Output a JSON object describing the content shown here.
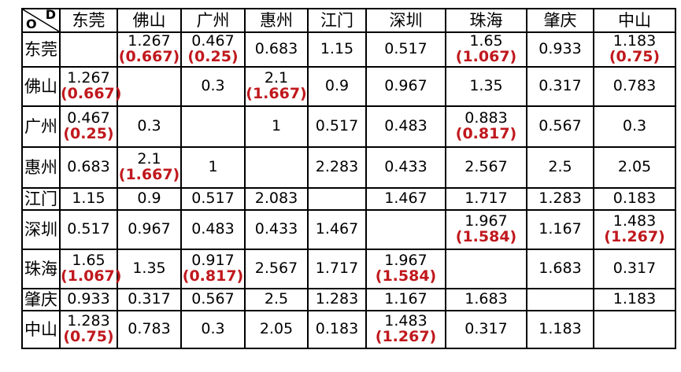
{
  "corner": {
    "origin_label": "O",
    "destination_label": "D"
  },
  "cities": [
    "东莞",
    "佛山",
    "广州",
    "惠州",
    "江门",
    "深圳",
    "珠海",
    "肇庆",
    "中山"
  ],
  "matrix": [
    [
      {
        "v": "",
        "alt": ""
      },
      {
        "v": "1.267",
        "alt": "(0.667)"
      },
      {
        "v": "0.467",
        "alt": "(0.25)"
      },
      {
        "v": "0.683",
        "alt": ""
      },
      {
        "v": "1.15",
        "alt": ""
      },
      {
        "v": "0.517",
        "alt": ""
      },
      {
        "v": "1.65",
        "alt": "(1.067)"
      },
      {
        "v": "0.933",
        "alt": ""
      },
      {
        "v": "1.183",
        "alt": "(0.75)"
      }
    ],
    [
      {
        "v": "1.267",
        "alt": "(0.667)"
      },
      {
        "v": "",
        "alt": ""
      },
      {
        "v": "0.3",
        "alt": ""
      },
      {
        "v": "2.1",
        "alt": "(1.667)"
      },
      {
        "v": "0.9",
        "alt": ""
      },
      {
        "v": "0.967",
        "alt": ""
      },
      {
        "v": "1.35",
        "alt": ""
      },
      {
        "v": "0.317",
        "alt": ""
      },
      {
        "v": "0.783",
        "alt": ""
      }
    ],
    [
      {
        "v": "0.467",
        "alt": "(0.25)"
      },
      {
        "v": "0.3",
        "alt": ""
      },
      {
        "v": "",
        "alt": ""
      },
      {
        "v": "1",
        "alt": ""
      },
      {
        "v": "0.517",
        "alt": ""
      },
      {
        "v": "0.483",
        "alt": ""
      },
      {
        "v": "0.883",
        "alt": "(0.817)"
      },
      {
        "v": "0.567",
        "alt": ""
      },
      {
        "v": "0.3",
        "alt": ""
      }
    ],
    [
      {
        "v": "0.683",
        "alt": ""
      },
      {
        "v": "2.1",
        "alt": "(1.667)"
      },
      {
        "v": "1",
        "alt": ""
      },
      {
        "v": "",
        "alt": ""
      },
      {
        "v": "2.283",
        "alt": ""
      },
      {
        "v": "0.433",
        "alt": ""
      },
      {
        "v": "2.567",
        "alt": ""
      },
      {
        "v": "2.5",
        "alt": ""
      },
      {
        "v": "2.05",
        "alt": ""
      }
    ],
    [
      {
        "v": "1.15",
        "alt": ""
      },
      {
        "v": "0.9",
        "alt": ""
      },
      {
        "v": "0.517",
        "alt": ""
      },
      {
        "v": "2.083",
        "alt": ""
      },
      {
        "v": "",
        "alt": ""
      },
      {
        "v": "1.467",
        "alt": ""
      },
      {
        "v": "1.717",
        "alt": ""
      },
      {
        "v": "1.283",
        "alt": ""
      },
      {
        "v": "0.183",
        "alt": ""
      }
    ],
    [
      {
        "v": "0.517",
        "alt": ""
      },
      {
        "v": "0.967",
        "alt": ""
      },
      {
        "v": "0.483",
        "alt": ""
      },
      {
        "v": "0.433",
        "alt": ""
      },
      {
        "v": "1.467",
        "alt": ""
      },
      {
        "v": "",
        "alt": ""
      },
      {
        "v": "1.967",
        "alt": "(1.584)"
      },
      {
        "v": "1.167",
        "alt": ""
      },
      {
        "v": "1.483",
        "alt": "(1.267)"
      }
    ],
    [
      {
        "v": "1.65",
        "alt": "(1.067)"
      },
      {
        "v": "1.35",
        "alt": ""
      },
      {
        "v": "0.917",
        "alt": "(0.817)"
      },
      {
        "v": "2.567",
        "alt": ""
      },
      {
        "v": "1.717",
        "alt": ""
      },
      {
        "v": "1.967",
        "alt": "(1.584)"
      },
      {
        "v": "",
        "alt": ""
      },
      {
        "v": "1.683",
        "alt": ""
      },
      {
        "v": "0.317",
        "alt": ""
      }
    ],
    [
      {
        "v": "0.933",
        "alt": ""
      },
      {
        "v": "0.317",
        "alt": ""
      },
      {
        "v": "0.567",
        "alt": ""
      },
      {
        "v": "2.5",
        "alt": ""
      },
      {
        "v": "1.283",
        "alt": ""
      },
      {
        "v": "1.167",
        "alt": ""
      },
      {
        "v": "1.683",
        "alt": ""
      },
      {
        "v": "",
        "alt": ""
      },
      {
        "v": "1.183",
        "alt": ""
      }
    ],
    [
      {
        "v": "1.283",
        "alt": "(0.75)"
      },
      {
        "v": "0.783",
        "alt": ""
      },
      {
        "v": "0.3",
        "alt": ""
      },
      {
        "v": "2.05",
        "alt": ""
      },
      {
        "v": "0.183",
        "alt": ""
      },
      {
        "v": "1.483",
        "alt": "(1.267)"
      },
      {
        "v": "0.317",
        "alt": ""
      },
      {
        "v": "1.183",
        "alt": ""
      },
      {
        "v": "",
        "alt": ""
      }
    ]
  ],
  "colors": {
    "highlight": "#c0181d",
    "text": "#000000",
    "border": "#000000"
  }
}
